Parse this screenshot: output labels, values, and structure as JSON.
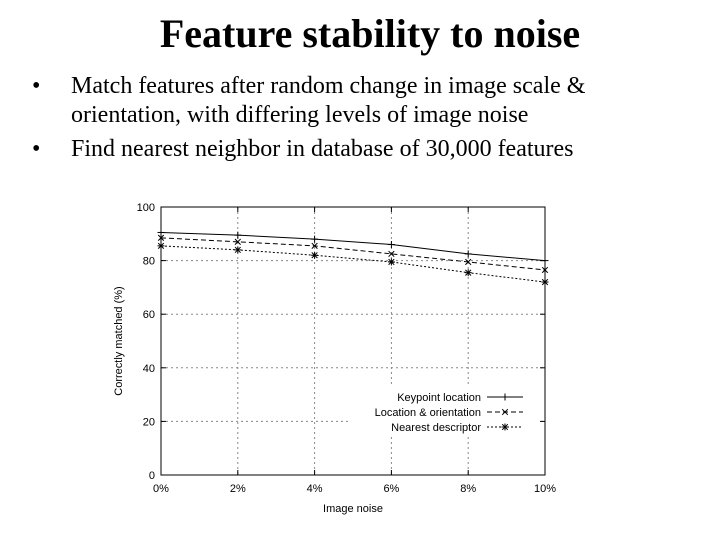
{
  "slide": {
    "title": "Feature stability to noise",
    "bullets": [
      "Match features after random change in image scale & orientation, with differing levels of image noise",
      "Find nearest neighbor in database of 30,000 features"
    ]
  },
  "chart_data": {
    "type": "line",
    "xlabel": "Image noise",
    "ylabel": "Correctly matched (%)",
    "x": [
      0,
      2,
      4,
      6,
      8,
      10
    ],
    "x_tick_labels": [
      "0%",
      "2%",
      "4%",
      "6%",
      "8%",
      "10%"
    ],
    "ylim": [
      0,
      100
    ],
    "y_ticks": [
      0,
      20,
      40,
      60,
      80,
      100
    ],
    "grid": true,
    "legend_position": "bottom-right",
    "series": [
      {
        "name": "Keypoint location",
        "values": [
          90.5,
          89.5,
          88.0,
          86.0,
          82.5,
          80.0
        ],
        "marker": "+",
        "dash": "solid"
      },
      {
        "name": "Location & orientation",
        "values": [
          88.5,
          87.0,
          85.5,
          82.5,
          79.5,
          76.5
        ],
        "marker": "x",
        "dash": "dashed"
      },
      {
        "name": "Nearest descriptor",
        "values": [
          85.5,
          84.0,
          82.0,
          79.5,
          75.5,
          72.0
        ],
        "marker": "*",
        "dash": "dotted"
      }
    ],
    "colors": {
      "line": "#000000",
      "grid": "#888888",
      "frame": "#000000"
    }
  }
}
